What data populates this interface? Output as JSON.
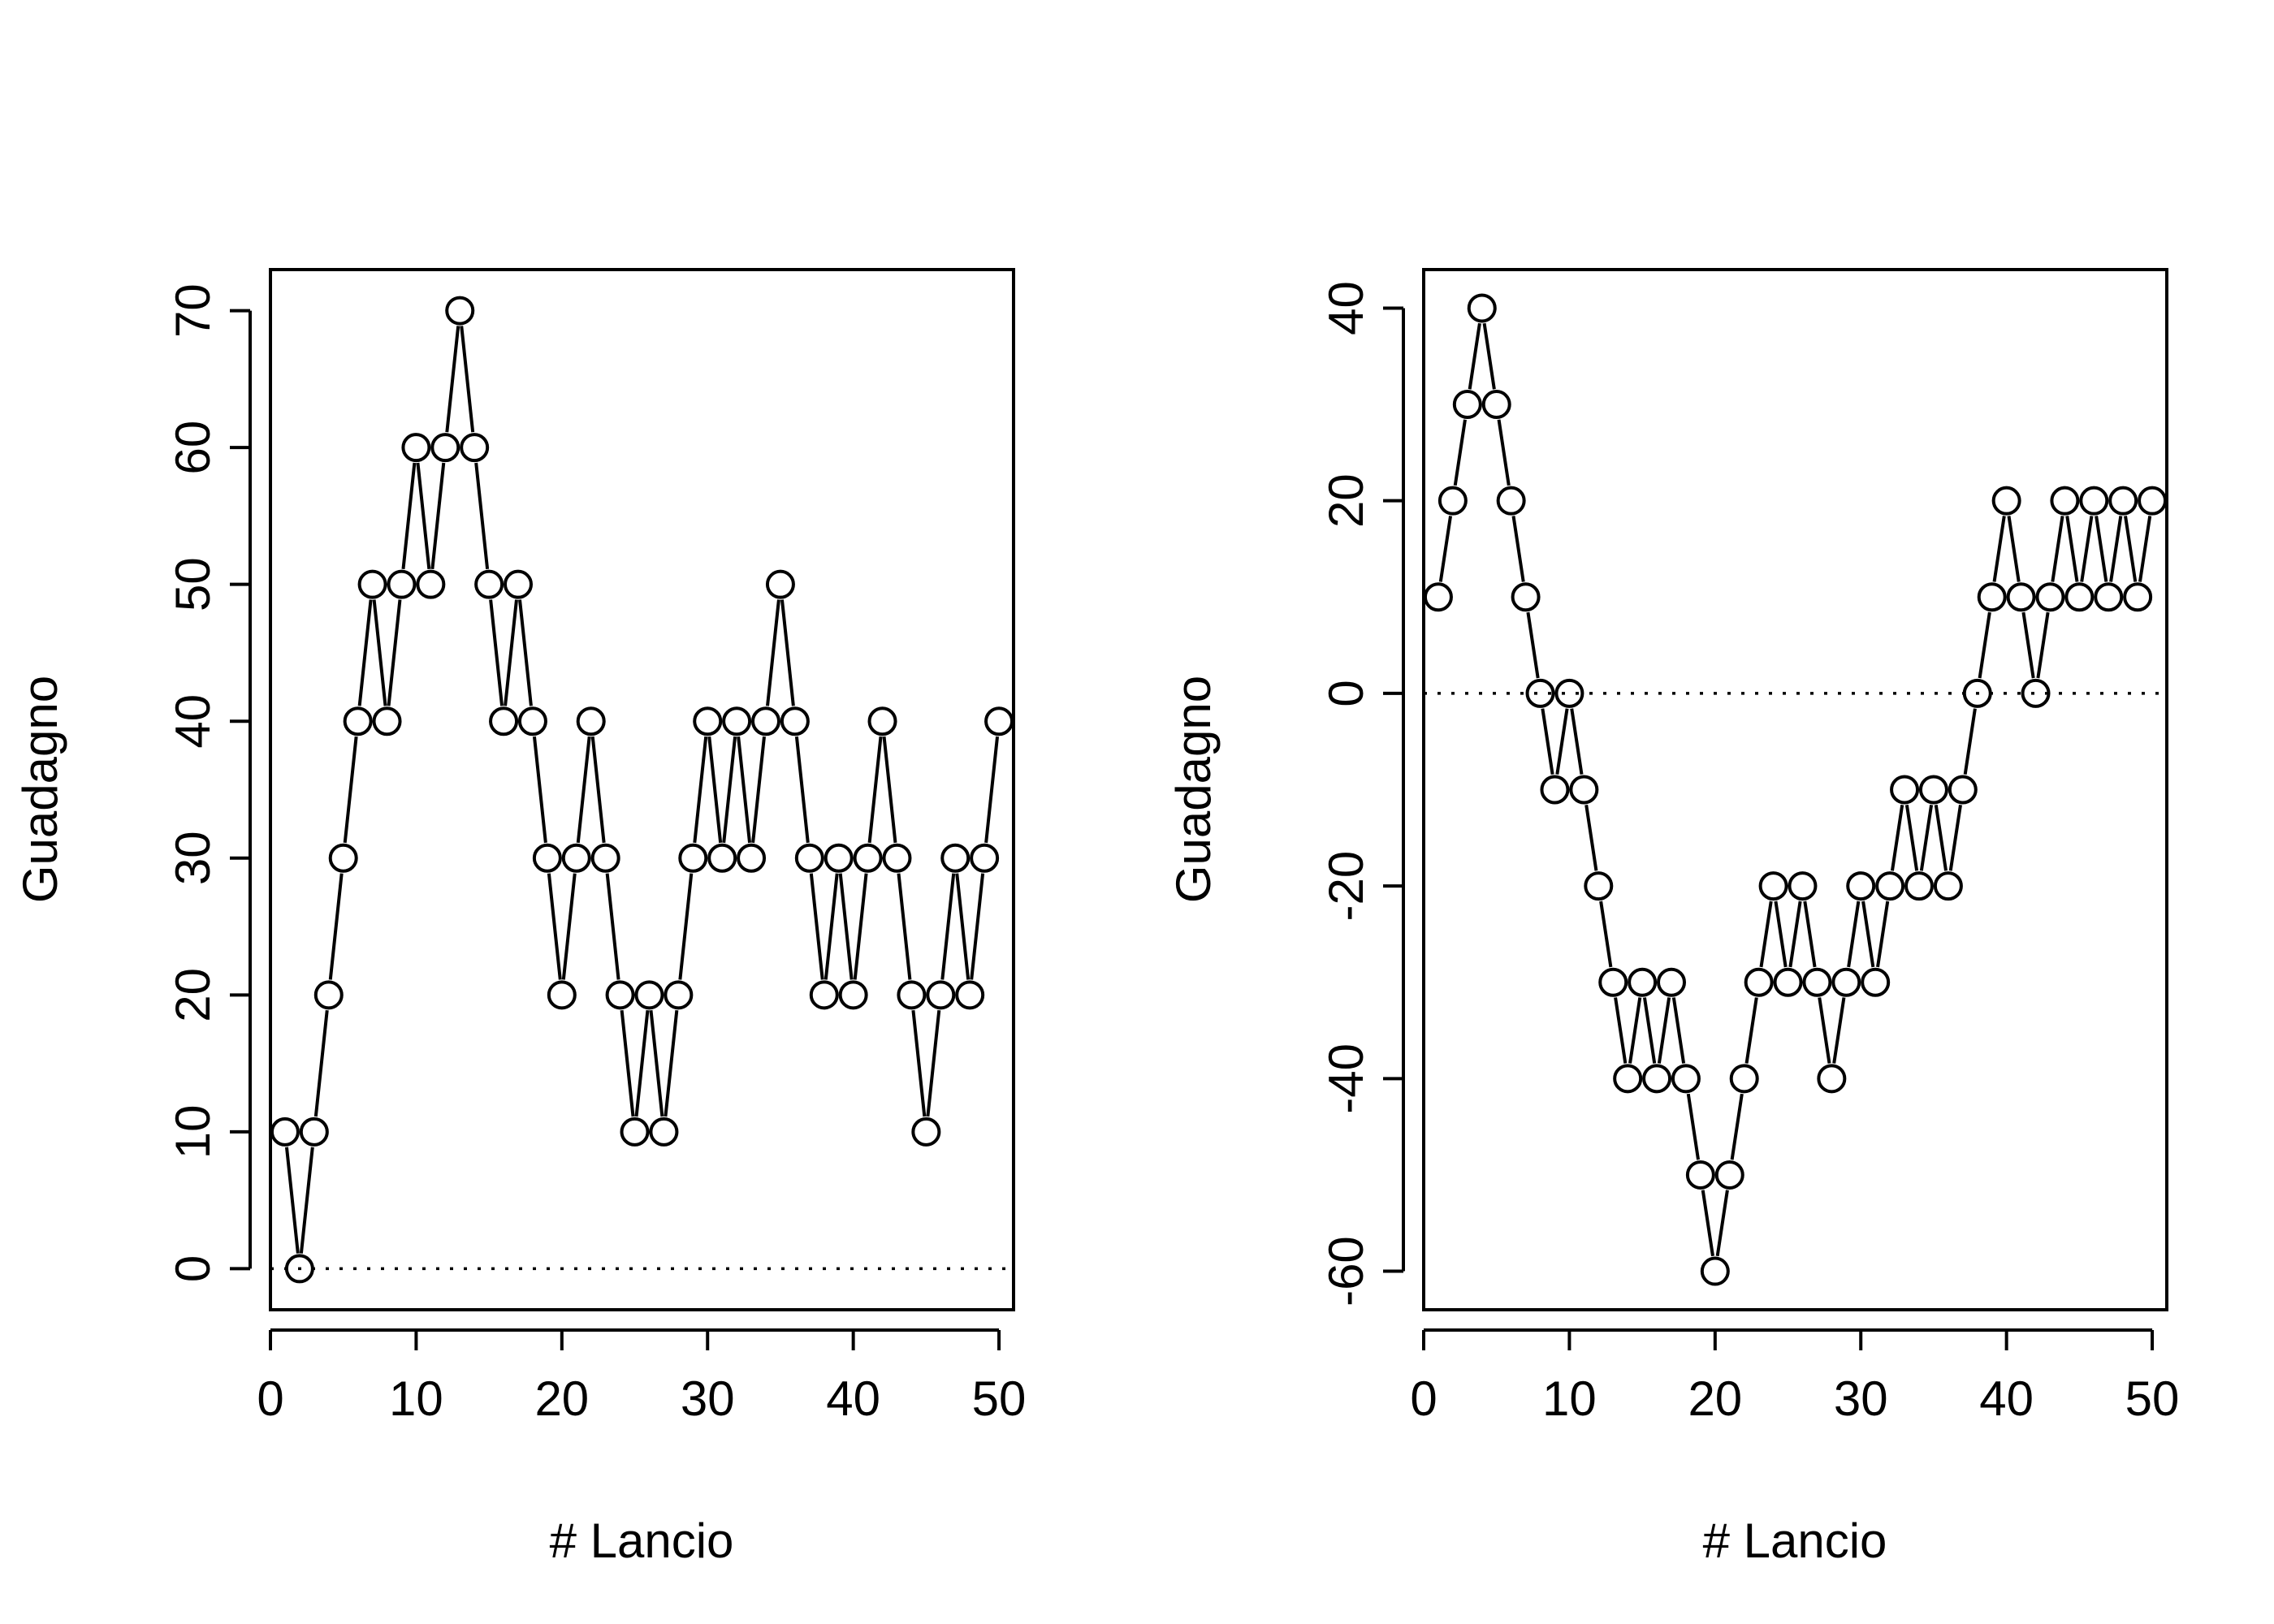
{
  "chart_data": [
    {
      "type": "line",
      "style": "points-and-lines",
      "title": "",
      "xlabel": "# Lancio",
      "ylabel": "Guadagno",
      "xlim": [
        0,
        51
      ],
      "ylim": [
        -3,
        73
      ],
      "xticks": [
        0,
        10,
        20,
        30,
        40,
        50
      ],
      "xtick_labels": [
        "0",
        "10",
        "20",
        "30",
        "40",
        "50"
      ],
      "yticks": [
        0,
        10,
        20,
        30,
        40,
        50,
        60,
        70
      ],
      "ytick_labels": [
        "0",
        "10",
        "20",
        "30",
        "40",
        "50",
        "60",
        "70"
      ],
      "reference_line": {
        "y": 0,
        "style": "dotted"
      },
      "series": [
        {
          "name": "Guadagno",
          "x": [
            1,
            2,
            3,
            4,
            5,
            6,
            7,
            8,
            9,
            10,
            11,
            12,
            13,
            14,
            15,
            16,
            17,
            18,
            19,
            20,
            21,
            22,
            23,
            24,
            25,
            26,
            27,
            28,
            29,
            30,
            31,
            32,
            33,
            34,
            35,
            36,
            37,
            38,
            39,
            40,
            41,
            42,
            43,
            44,
            45,
            46,
            47,
            48,
            49,
            50
          ],
          "values": [
            10,
            0,
            10,
            20,
            30,
            40,
            50,
            40,
            50,
            60,
            50,
            60,
            70,
            60,
            50,
            40,
            50,
            40,
            30,
            20,
            30,
            40,
            30,
            20,
            10,
            20,
            10,
            20,
            30,
            40,
            30,
            40,
            30,
            40,
            50,
            40,
            30,
            20,
            30,
            20,
            30,
            40,
            30,
            20,
            10,
            20,
            30,
            20,
            30,
            40
          ]
        }
      ]
    },
    {
      "type": "line",
      "style": "points-and-lines",
      "title": "",
      "xlabel": "# Lancio",
      "ylabel": "Guadagno",
      "xlim": [
        0,
        51
      ],
      "ylim": [
        -64,
        44
      ],
      "xticks": [
        0,
        10,
        20,
        30,
        40,
        50
      ],
      "xtick_labels": [
        "0",
        "10",
        "20",
        "30",
        "40",
        "50"
      ],
      "yticks": [
        -60,
        -40,
        -20,
        0,
        20,
        40
      ],
      "ytick_labels": [
        "-60",
        "-40",
        "-20",
        "0",
        "20",
        "40"
      ],
      "reference_line": {
        "y": 0,
        "style": "dotted"
      },
      "series": [
        {
          "name": "Guadagno",
          "x": [
            1,
            2,
            3,
            4,
            5,
            6,
            7,
            8,
            9,
            10,
            11,
            12,
            13,
            14,
            15,
            16,
            17,
            18,
            19,
            20,
            21,
            22,
            23,
            24,
            25,
            26,
            27,
            28,
            29,
            30,
            31,
            32,
            33,
            34,
            35,
            36,
            37,
            38,
            39,
            40,
            41,
            42,
            43,
            44,
            45,
            46,
            47,
            48,
            49,
            50
          ],
          "values": [
            10,
            20,
            30,
            40,
            30,
            20,
            10,
            0,
            -10,
            0,
            -10,
            -20,
            -30,
            -40,
            -30,
            -40,
            -30,
            -40,
            -50,
            -60,
            -50,
            -40,
            -30,
            -20,
            -30,
            -20,
            -30,
            -40,
            -30,
            -20,
            -30,
            -20,
            -10,
            -20,
            -10,
            -20,
            -10,
            0,
            10,
            20,
            10,
            0,
            10,
            20,
            10,
            20,
            10,
            20,
            10,
            20
          ]
        }
      ]
    }
  ]
}
